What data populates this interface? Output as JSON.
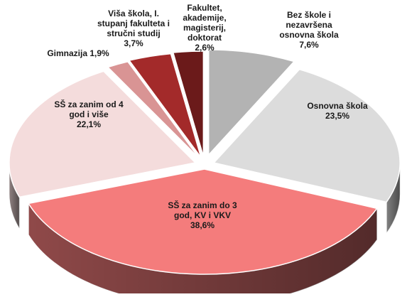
{
  "chart_data": {
    "type": "pie",
    "style": "3d-exploded",
    "title": "",
    "slices": [
      {
        "label": "Bez škole i\nnezavršena\nosnovna škola",
        "value_text": "7,6%",
        "value": 7.6,
        "color": "#b3b3b3"
      },
      {
        "label": "Osnovna škola",
        "value_text": "23,5%",
        "value": 23.5,
        "color": "#dcdcdc"
      },
      {
        "label": "SŠ za zanim do 3\ngod, KV i VKV",
        "value_text": "38,6%",
        "value": 38.6,
        "color": "#f47c7c"
      },
      {
        "label": "SŠ za zanim od 4\ngod i više",
        "value_text": "22,1%",
        "value": 22.1,
        "color": "#f4dcdc"
      },
      {
        "label": "Gimnazija",
        "value_text": "1,9%",
        "value": 1.9,
        "color": "#d99494"
      },
      {
        "label": "Viša škola, I.\nstupanj fakulteta i\nstručni studij",
        "value_text": "3,7%",
        "value": 3.7,
        "color": "#a32a2a"
      },
      {
        "label": "Fakultet,\nakademije,\nmagisterij,\ndoktorat",
        "value_text": "2,6%",
        "value": 2.6,
        "color": "#6b1a1a"
      }
    ]
  }
}
